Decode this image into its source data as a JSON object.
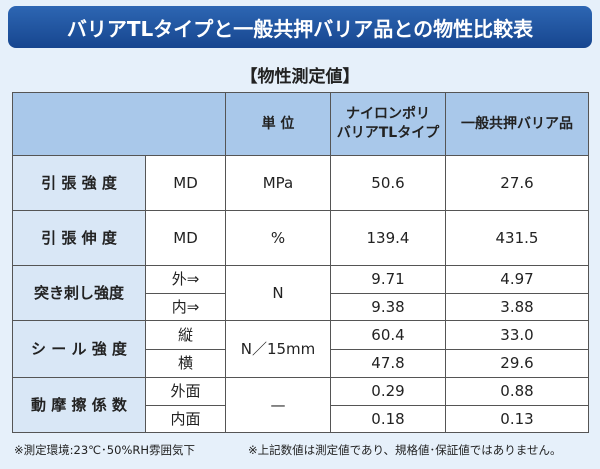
{
  "header": {
    "title": "バリアTLタイプと一般共押バリア品との物性比較表",
    "subtitle": "【物性測定値】"
  },
  "table": {
    "columns": [
      {
        "lines": [
          "単 位"
        ]
      },
      {
        "lines": [
          "ナイロンポリ",
          "バリアTLタイプ"
        ]
      },
      {
        "lines": [
          "一般共押バリア品"
        ]
      }
    ],
    "groups": [
      {
        "label": "引 張 強 度",
        "unit": "MPa",
        "rows": [
          {
            "sub": "MD",
            "values": [
              "50.6",
              "27.6"
            ]
          }
        ]
      },
      {
        "label": "引 張 伸 度",
        "unit": "%",
        "rows": [
          {
            "sub": "MD",
            "values": [
              "139.4",
              "431.5"
            ]
          }
        ]
      },
      {
        "label": "突き刺し強度",
        "unit": "N",
        "rows": [
          {
            "sub": "外⇒",
            "values": [
              "9.71",
              "4.97"
            ]
          },
          {
            "sub": "内⇒",
            "values": [
              "9.38",
              "3.88"
            ]
          }
        ]
      },
      {
        "label": "シ ー ル 強 度",
        "unit": "N／15mm",
        "rows": [
          {
            "sub": "縦",
            "values": [
              "60.4",
              "33.0"
            ]
          },
          {
            "sub": "横",
            "values": [
              "47.8",
              "29.6"
            ]
          }
        ]
      },
      {
        "label": "動 摩 擦 係 数",
        "unit": "—",
        "rows": [
          {
            "sub": "外面",
            "values": [
              "0.29",
              "0.88"
            ]
          },
          {
            "sub": "内面",
            "values": [
              "0.18",
              "0.13"
            ]
          }
        ]
      }
    ]
  },
  "footer": {
    "notes": [
      "※測定環境:23℃･50%RH雰囲気下",
      "※上記数値は測定値であり、規格値･保証値ではありません。"
    ]
  }
}
